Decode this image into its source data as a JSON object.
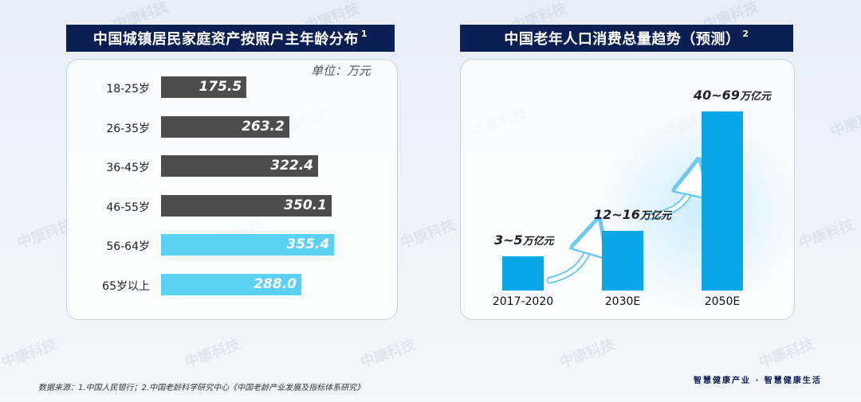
{
  "left_panel": {
    "title": "中国城镇居民家庭资产按照户主年龄分布",
    "title_sup": "1",
    "unit": "单位：万元"
  },
  "right_panel": {
    "title": "中国老年人口消费总量趋势（预测）",
    "title_sup": "2"
  },
  "chart_data": [
    {
      "type": "bar",
      "orientation": "horizontal",
      "title": "中国城镇居民家庭资产按照户主年龄分布",
      "unit": "万元",
      "categories": [
        "18-25岁",
        "26-35岁",
        "36-45岁",
        "46-55岁",
        "56-64岁",
        "65岁以上"
      ],
      "values": [
        175.5,
        263.2,
        322.4,
        350.1,
        355.4,
        288.0
      ],
      "labels": [
        "175.5",
        "263.2",
        "322.4",
        "350.1",
        "355.4",
        "288.0"
      ],
      "colors": [
        "#4d4d4d",
        "#4d4d4d",
        "#4d4d4d",
        "#4d4d4d",
        "#5ad1f5",
        "#5ad1f5"
      ],
      "xlim": [
        0,
        360
      ]
    },
    {
      "type": "bar",
      "title": "中国老年人口消费总量趋势（预测）",
      "categories": [
        "2017-2020",
        "2030E",
        "2050E"
      ],
      "ranges": [
        [
          3,
          5
        ],
        [
          12,
          16
        ],
        [
          40,
          69
        ]
      ],
      "label_numbers": [
        "3~5",
        "12~16",
        "40~69"
      ],
      "label_unit": "万亿元",
      "color": "#0aa7e8"
    }
  ],
  "watermark": "中康科技",
  "footnote": "数据来源：1.中国人民银行；2.中国老龄科学研究中心《中国老龄产业发展及指标体系研究》",
  "slogan": "智慧健康产业 · 智慧健康生活"
}
